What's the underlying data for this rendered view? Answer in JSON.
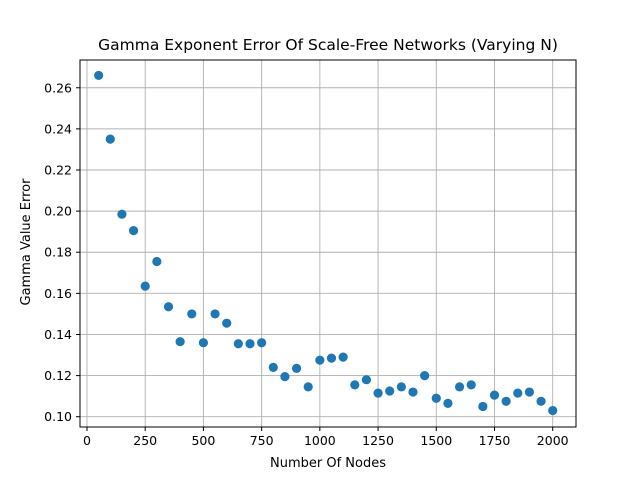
{
  "chart_data": {
    "type": "scatter",
    "title": "Gamma Exponent Error Of Scale-Free Networks (Varying N)",
    "xlabel": "Number Of Nodes",
    "ylabel": "Gamma Value Error",
    "xlim": [
      -30,
      2100
    ],
    "ylim": [
      0.095,
      0.2735
    ],
    "xticks": [
      0,
      250,
      500,
      750,
      1000,
      1250,
      1500,
      1750,
      2000
    ],
    "xtick_labels": [
      "0",
      "250",
      "500",
      "750",
      "1000",
      "1250",
      "1500",
      "1750",
      "2000"
    ],
    "yticks": [
      0.1,
      0.12,
      0.14,
      0.16,
      0.18,
      0.2,
      0.22,
      0.24,
      0.26
    ],
    "ytick_labels": [
      "0.10",
      "0.12",
      "0.14",
      "0.16",
      "0.18",
      "0.20",
      "0.22",
      "0.24",
      "0.26"
    ],
    "grid": true,
    "marker_color": "#1f77b4",
    "series": [
      {
        "x": [
          50,
          100,
          150,
          200,
          250,
          300,
          350,
          400,
          450,
          500,
          550,
          600,
          650,
          700,
          750,
          800,
          850,
          900,
          950,
          1000,
          1050,
          1100,
          1150,
          1200,
          1250,
          1300,
          1350,
          1400,
          1450,
          1500,
          1550,
          1600,
          1650,
          1700,
          1750,
          1800,
          1850,
          1900,
          1950,
          2000
        ],
        "y": [
          0.266,
          0.235,
          0.1985,
          0.1905,
          0.1635,
          0.1755,
          0.1535,
          0.1365,
          0.15,
          0.136,
          0.15,
          0.1455,
          0.1355,
          0.1355,
          0.136,
          0.124,
          0.1195,
          0.1235,
          0.1145,
          0.1275,
          0.1285,
          0.129,
          0.1155,
          0.118,
          0.1115,
          0.1125,
          0.1145,
          0.112,
          0.12,
          0.109,
          0.1065,
          0.1145,
          0.1155,
          0.105,
          0.1105,
          0.1075,
          0.1115,
          0.112,
          0.1075,
          0.103
        ]
      }
    ]
  }
}
